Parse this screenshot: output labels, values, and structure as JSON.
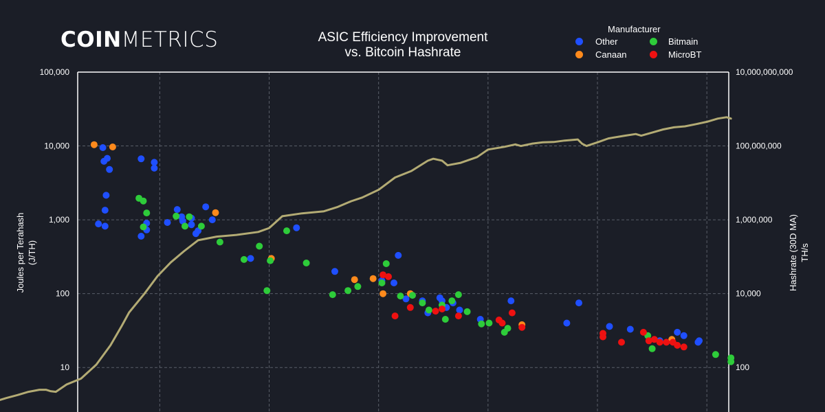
{
  "brand": {
    "part1": "COIN",
    "part2": "METRICS"
  },
  "chart_data": {
    "type": "scatter",
    "title": "ASIC Efficiency Improvement",
    "subtitle": "vs. Bitcoin Hashrate",
    "ylabel": "Joules per Terahash",
    "ylabel_unit": "(J/TH)",
    "y2label": "Hashrate (30D MA)",
    "y2label_unit": "TH/s",
    "y_scale": "log",
    "y2_scale": "log",
    "ylim": [
      2.5,
      100000
    ],
    "y2lim": [
      6.25,
      10000000000
    ],
    "xlim": [
      2013.25,
      2019.2
    ],
    "grid": true,
    "colors": {
      "background": "#1b1e27",
      "Other": "#1f4fff",
      "Canaan": "#ff8a1c",
      "Bitmain": "#2ecc3a",
      "MicroBT": "#ee1111",
      "hashrate_line": "#b3ab74",
      "grid": "#5a5e68"
    },
    "legend": {
      "title": "Manufacturer",
      "placement": "top-right",
      "entries": [
        "Other",
        "Canaan",
        "Bitmain",
        "MicroBT"
      ]
    },
    "y_ticks": [
      {
        "value": 100000,
        "label": "100,000"
      },
      {
        "value": 10000,
        "label": "10,000"
      },
      {
        "value": 1000,
        "label": "1,000"
      },
      {
        "value": 100,
        "label": "100"
      },
      {
        "value": 10,
        "label": "10"
      }
    ],
    "y2_ticks": [
      {
        "value": 10000000000,
        "label": "10,000,000,000"
      },
      {
        "value": 100000000,
        "label": "100,000,000"
      },
      {
        "value": 1000000,
        "label": "1,000,000"
      },
      {
        "value": 10000,
        "label": "10,000"
      },
      {
        "value": 100,
        "label": "100"
      }
    ],
    "x_gridlines": [
      2014,
      2015,
      2016,
      2017,
      2018,
      2019
    ],
    "series": [
      {
        "name": "Other",
        "points": [
          [
            2013.48,
            9500
          ],
          [
            2013.49,
            6200
          ],
          [
            2013.52,
            6800
          ],
          [
            2013.54,
            4800
          ],
          [
            2013.83,
            6700
          ],
          [
            2013.95,
            6000
          ],
          [
            2013.95,
            5000
          ],
          [
            2013.51,
            2150
          ],
          [
            2013.5,
            1350
          ],
          [
            2013.44,
            880
          ],
          [
            2013.5,
            820
          ],
          [
            2013.83,
            600
          ],
          [
            2013.88,
            900
          ],
          [
            2013.88,
            730
          ],
          [
            2014.07,
            920
          ],
          [
            2014.16,
            1380
          ],
          [
            2014.2,
            1100
          ],
          [
            2014.21,
            960
          ],
          [
            2014.29,
            1050
          ],
          [
            2014.29,
            860
          ],
          [
            2014.33,
            650
          ],
          [
            2014.35,
            710
          ],
          [
            2014.42,
            1500
          ],
          [
            2014.48,
            1000
          ],
          [
            2014.83,
            300
          ],
          [
            2015.25,
            780
          ],
          [
            2015.6,
            200
          ],
          [
            2016.03,
            150
          ],
          [
            2016.14,
            140
          ],
          [
            2016.18,
            330
          ],
          [
            2016.25,
            85
          ],
          [
            2016.4,
            80
          ],
          [
            2016.45,
            55
          ],
          [
            2016.56,
            88
          ],
          [
            2016.58,
            80
          ],
          [
            2016.62,
            65
          ],
          [
            2016.68,
            75
          ],
          [
            2016.74,
            60
          ],
          [
            2016.93,
            45
          ],
          [
            2017.21,
            80
          ],
          [
            2017.72,
            40
          ],
          [
            2017.83,
            75
          ],
          [
            2018.11,
            36
          ],
          [
            2018.3,
            33
          ],
          [
            2018.57,
            23
          ],
          [
            2018.73,
            30
          ],
          [
            2018.79,
            27
          ],
          [
            2018.92,
            22
          ],
          [
            2018.93,
            23
          ]
        ]
      },
      {
        "name": "Canaan",
        "points": [
          [
            2013.4,
            10400
          ],
          [
            2013.57,
            9700
          ],
          [
            2014.51,
            1250
          ],
          [
            2015.02,
            300
          ],
          [
            2015.78,
            155
          ],
          [
            2015.95,
            160
          ],
          [
            2016.04,
            100
          ],
          [
            2016.29,
            100
          ],
          [
            2017.31,
            38
          ],
          [
            2018.68,
            24
          ]
        ]
      },
      {
        "name": "Bitmain",
        "points": [
          [
            2013.81,
            1960
          ],
          [
            2013.85,
            1800
          ],
          [
            2013.88,
            1240
          ],
          [
            2013.85,
            800
          ],
          [
            2014.15,
            1120
          ],
          [
            2014.23,
            820
          ],
          [
            2014.27,
            1100
          ],
          [
            2014.38,
            820
          ],
          [
            2014.55,
            500
          ],
          [
            2014.77,
            290
          ],
          [
            2014.91,
            440
          ],
          [
            2014.98,
            110
          ],
          [
            2015.01,
            280
          ],
          [
            2015.16,
            710
          ],
          [
            2015.34,
            260
          ],
          [
            2015.58,
            97
          ],
          [
            2015.72,
            110
          ],
          [
            2015.81,
            125
          ],
          [
            2016.03,
            140
          ],
          [
            2016.07,
            255
          ],
          [
            2016.2,
            93
          ],
          [
            2016.31,
            95
          ],
          [
            2016.4,
            75
          ],
          [
            2016.46,
            60
          ],
          [
            2016.58,
            70
          ],
          [
            2016.61,
            45
          ],
          [
            2016.67,
            80
          ],
          [
            2016.73,
            97
          ],
          [
            2016.81,
            57
          ],
          [
            2016.94,
            39
          ],
          [
            2017.01,
            40
          ],
          [
            2017.15,
            30
          ],
          [
            2017.18,
            34
          ],
          [
            2018.46,
            27
          ],
          [
            2018.5,
            18
          ],
          [
            2019.08,
            15
          ],
          [
            2019.22,
            13.5
          ],
          [
            2019.22,
            12
          ]
        ]
      },
      {
        "name": "MicroBT",
        "points": [
          [
            2016.04,
            180
          ],
          [
            2016.09,
            170
          ],
          [
            2016.15,
            50
          ],
          [
            2016.29,
            65
          ],
          [
            2016.52,
            58
          ],
          [
            2016.58,
            62
          ],
          [
            2016.73,
            50
          ],
          [
            2017.1,
            44
          ],
          [
            2017.13,
            40
          ],
          [
            2017.22,
            55
          ],
          [
            2017.31,
            35
          ],
          [
            2018.05,
            29
          ],
          [
            2018.05,
            26
          ],
          [
            2018.22,
            22
          ],
          [
            2018.42,
            30
          ],
          [
            2018.47,
            23
          ],
          [
            2018.52,
            24
          ],
          [
            2018.57,
            22
          ],
          [
            2018.63,
            22
          ],
          [
            2018.69,
            22
          ],
          [
            2018.73,
            20
          ],
          [
            2018.79,
            19
          ]
        ]
      }
    ],
    "hashrate_series": {
      "name": "Hashrate (30D MA)",
      "points": [
        [
          2012.53,
          13
        ],
        [
          2012.6,
          15
        ],
        [
          2012.7,
          18
        ],
        [
          2012.8,
          22
        ],
        [
          2012.9,
          25
        ],
        [
          2012.96,
          25
        ],
        [
          2013.0,
          23
        ],
        [
          2013.05,
          22
        ],
        [
          2013.15,
          35
        ],
        [
          2013.28,
          50
        ],
        [
          2013.42,
          120
        ],
        [
          2013.55,
          400
        ],
        [
          2013.65,
          1300
        ],
        [
          2013.72,
          3100
        ],
        [
          2013.86,
          10000
        ],
        [
          2013.98,
          30000
        ],
        [
          2014.1,
          70000
        ],
        [
          2014.22,
          140000
        ],
        [
          2014.35,
          280000
        ],
        [
          2014.52,
          350000
        ],
        [
          2014.7,
          390000
        ],
        [
          2014.9,
          470000
        ],
        [
          2015.0,
          600000
        ],
        [
          2015.12,
          1250000
        ],
        [
          2015.3,
          1500000
        ],
        [
          2015.5,
          1700000
        ],
        [
          2015.62,
          2200000
        ],
        [
          2015.75,
          3200000
        ],
        [
          2015.85,
          4000000
        ],
        [
          2016.0,
          6500000
        ],
        [
          2016.15,
          14000000
        ],
        [
          2016.3,
          21000000
        ],
        [
          2016.45,
          40000000
        ],
        [
          2016.5,
          45000000
        ],
        [
          2016.58,
          40000000
        ],
        [
          2016.63,
          30000000
        ],
        [
          2016.75,
          35000000
        ],
        [
          2016.9,
          50000000
        ],
        [
          2017.0,
          80000000
        ],
        [
          2017.15,
          95000000
        ],
        [
          2017.25,
          110000000
        ],
        [
          2017.3,
          100000000
        ],
        [
          2017.4,
          115000000
        ],
        [
          2017.5,
          125000000
        ],
        [
          2017.6,
          128000000
        ],
        [
          2017.7,
          140000000
        ],
        [
          2017.82,
          150000000
        ],
        [
          2017.86,
          115000000
        ],
        [
          2017.9,
          100000000
        ],
        [
          2018.0,
          125000000
        ],
        [
          2018.1,
          160000000
        ],
        [
          2018.25,
          190000000
        ],
        [
          2018.35,
          210000000
        ],
        [
          2018.4,
          190000000
        ],
        [
          2018.5,
          230000000
        ],
        [
          2018.6,
          280000000
        ],
        [
          2018.7,
          320000000
        ],
        [
          2018.8,
          340000000
        ],
        [
          2018.9,
          390000000
        ],
        [
          2019.0,
          450000000
        ],
        [
          2019.1,
          550000000
        ],
        [
          2019.18,
          600000000
        ],
        [
          2019.22,
          550000000
        ]
      ]
    }
  }
}
